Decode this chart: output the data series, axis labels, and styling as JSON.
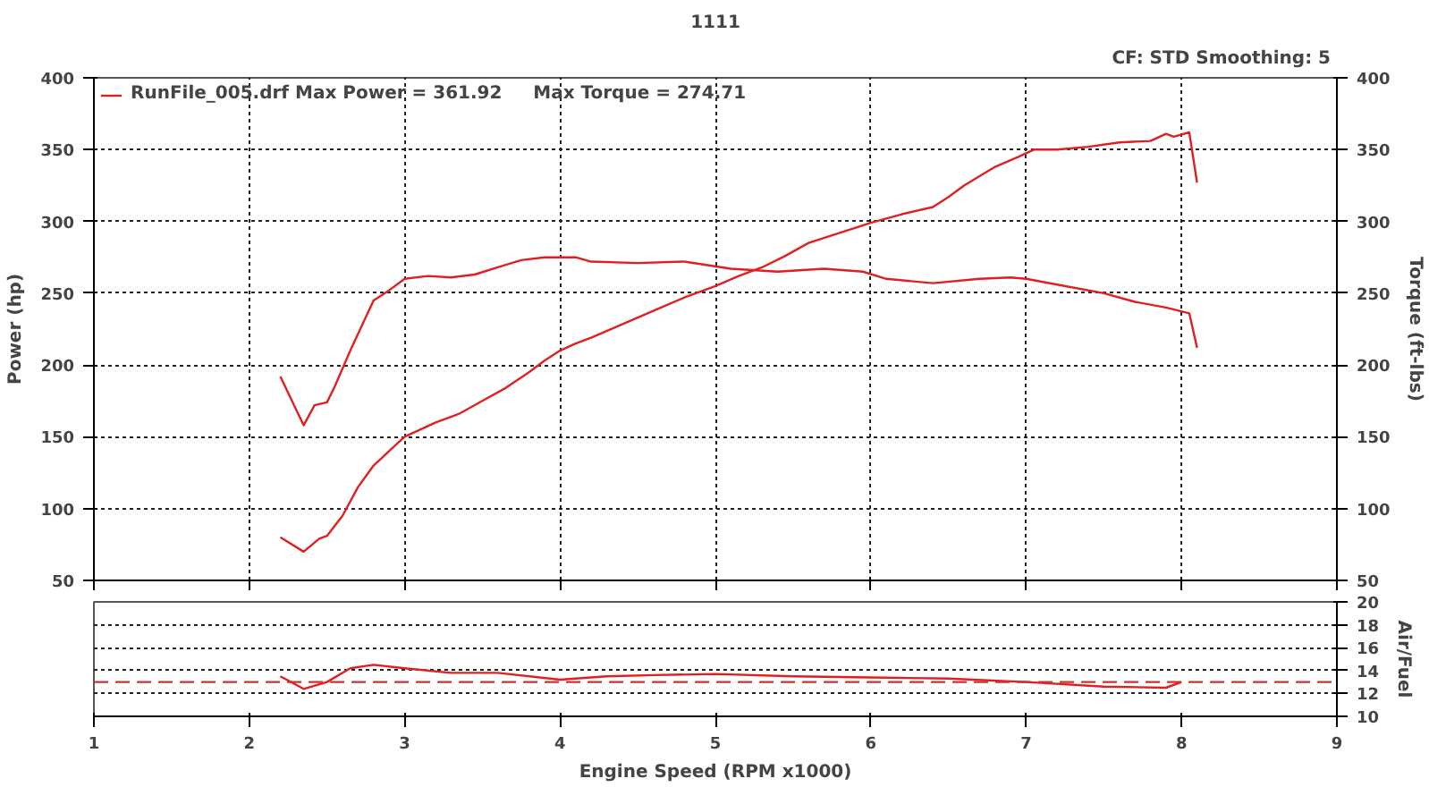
{
  "chart_data": [
    {
      "type": "line",
      "title": "1111",
      "ylabel": "Power (hp)",
      "y2label": "Torque (ft-lbs)",
      "annotations": [
        "CF: STD  Smoothing: 5"
      ],
      "xlim": [
        1,
        9
      ],
      "xticks": [
        1,
        2,
        3,
        4,
        5,
        6,
        7,
        8,
        9
      ],
      "ylim": [
        50,
        400
      ],
      "yticks": [
        50,
        100,
        150,
        200,
        250,
        300,
        350,
        400
      ],
      "y2lim": [
        50,
        400
      ],
      "y2ticks": [
        50,
        100,
        150,
        200,
        250,
        300,
        350,
        400
      ],
      "grid": true,
      "legend": "top left",
      "tick_labels": "y",
      "line_style": "solid",
      "marker": "none",
      "series": [
        {
          "name": "RunFile_005.drf Max Power = 361.92     Max Torque = 274.71",
          "color": "#e02020",
          "x": [
            2.2,
            2.35,
            2.45,
            2.5,
            2.6,
            2.7,
            2.8,
            2.9,
            3.0,
            3.1,
            3.2,
            3.35,
            3.5,
            3.65,
            3.8,
            3.9,
            4.0,
            4.1,
            4.2,
            4.35,
            4.5,
            4.65,
            4.8,
            5.0,
            5.15,
            5.3,
            5.45,
            5.6,
            5.8,
            6.0,
            6.2,
            6.4,
            6.5,
            6.6,
            6.8,
            6.95,
            7.05,
            7.2,
            7.4,
            7.6,
            7.8,
            7.9,
            7.95,
            8.05,
            8.1
          ],
          "values": [
            80,
            70,
            79,
            81,
            95,
            115,
            130,
            140,
            150,
            155,
            160,
            166,
            175,
            184,
            195,
            203,
            210,
            215,
            219,
            226,
            233,
            240,
            247,
            255,
            262,
            268,
            276,
            285,
            292,
            299,
            305,
            310,
            317,
            325,
            338,
            345,
            350,
            350,
            352,
            355,
            356,
            361,
            359,
            362,
            327
          ]
        },
        {
          "color": "#e02020",
          "x": [
            2.2,
            2.35,
            2.42,
            2.5,
            2.55,
            2.65,
            2.8,
            2.9,
            3.0,
            3.15,
            3.3,
            3.45,
            3.6,
            3.75,
            3.9,
            4.0,
            4.1,
            4.2,
            4.5,
            4.8,
            5.1,
            5.4,
            5.7,
            5.95,
            6.1,
            6.4,
            6.7,
            6.9,
            7.0,
            7.2,
            7.5,
            7.7,
            7.9,
            8.05,
            8.1
          ],
          "values": [
            192,
            158,
            172,
            174,
            185,
            210,
            245,
            252,
            260,
            262,
            261,
            263,
            268,
            273,
            275,
            275,
            275,
            272,
            271,
            272,
            267,
            265,
            267,
            265,
            260,
            257,
            260,
            261,
            260,
            256,
            250,
            244,
            240,
            236,
            212
          ]
        }
      ]
    },
    {
      "type": "line",
      "xlabel": "Engine Speed (RPM x1000)",
      "y2label": "Air/Fuel",
      "xlim": [
        1,
        9
      ],
      "xticks": [
        1,
        2,
        3,
        4,
        5,
        6,
        7,
        8,
        9
      ],
      "y2lim": [
        10,
        20
      ],
      "y2ticks": [
        10,
        12,
        14,
        16,
        18,
        20
      ],
      "grid": "y",
      "line_style": "solid",
      "marker": "none",
      "ref_lines": [
        {
          "axis": "y2",
          "value": 13,
          "color": "#d03030",
          "line_style": "dashed"
        }
      ],
      "series": [
        {
          "color": "#e02020",
          "axis": "y2",
          "x": [
            2.2,
            2.35,
            2.5,
            2.65,
            2.8,
            3.0,
            3.3,
            3.6,
            4.0,
            4.3,
            4.6,
            5.0,
            5.5,
            6.0,
            6.5,
            7.0,
            7.5,
            7.9,
            8.0
          ],
          "values": [
            13.5,
            12.4,
            13.0,
            14.2,
            14.5,
            14.2,
            13.8,
            13.8,
            13.2,
            13.5,
            13.6,
            13.7,
            13.5,
            13.4,
            13.3,
            13.0,
            12.6,
            12.5,
            13.0
          ]
        }
      ]
    }
  ]
}
